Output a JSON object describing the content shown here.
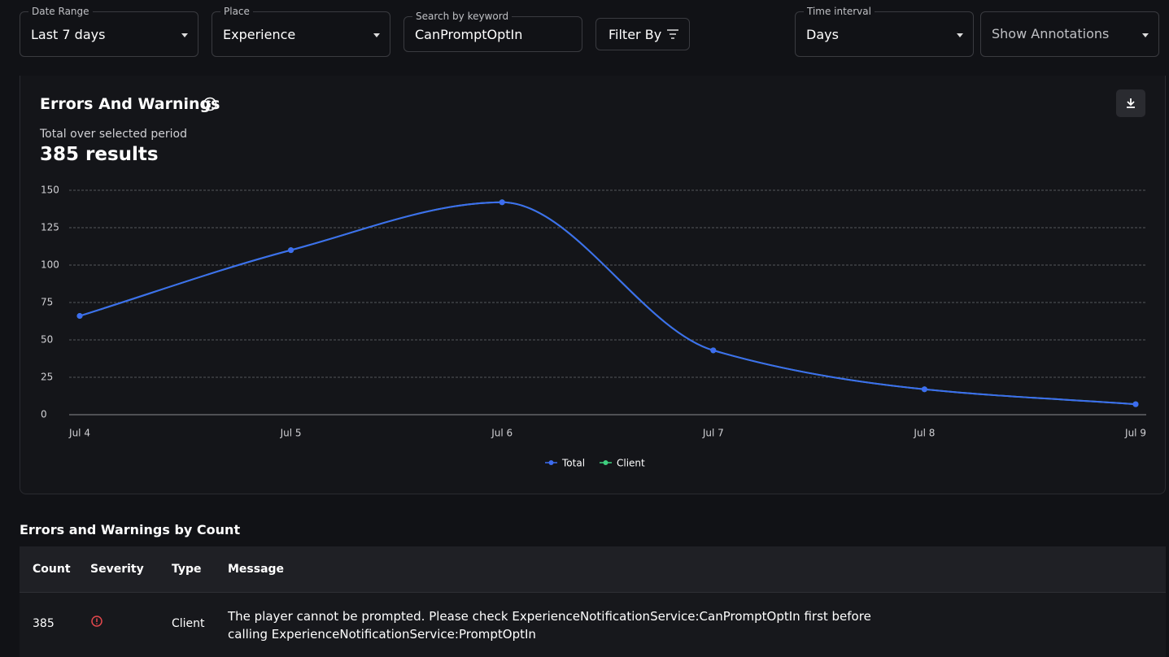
{
  "filters": [
    {
      "label": "Date Range",
      "value": "Last 7 days"
    },
    {
      "label": "Place",
      "value": "Experience"
    },
    {
      "label": "Search by keyword",
      "value": "CanPromptOptIn"
    }
  ],
  "filter_button": "Filter By",
  "time_interval": {
    "label": "Time interval",
    "value": "Days"
  },
  "annotations": "Show Annotations",
  "panel": {
    "title": "Errors And Warnings",
    "subtitle": "Total over selected period",
    "total": "385 results"
  },
  "chart_data": {
    "type": "line",
    "categories": [
      "Jul 4",
      "Jul 5",
      "Jul 6",
      "Jul 7",
      "Jul 8",
      "Jul 9"
    ],
    "series": [
      {
        "name": "Total",
        "color": "#3d6cf0",
        "values": [
          66,
          110,
          142,
          43,
          17,
          7
        ]
      },
      {
        "name": "Client",
        "color": "#3ecf7f",
        "values": [
          66,
          110,
          142,
          43,
          17,
          7
        ]
      }
    ],
    "ylim": [
      0,
      150
    ],
    "yticks": [
      0,
      25,
      50,
      75,
      100,
      125,
      150
    ],
    "grid": true
  },
  "table": {
    "title": "Errors and Warnings by Count",
    "columns": [
      "Count",
      "Severity",
      "Type",
      "Message"
    ],
    "rows": [
      {
        "count": 385,
        "type": "Client",
        "message": "The player cannot be prompted. Please check ExperienceNotificationService:CanPromptOptIn first before calling ExperienceNotificationService:PromptOptIn"
      }
    ]
  }
}
